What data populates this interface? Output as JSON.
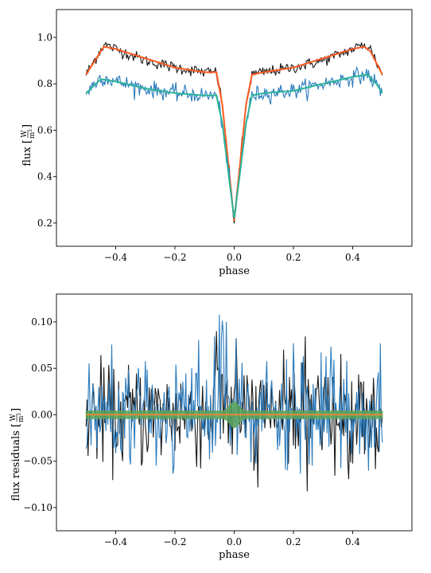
{
  "chart_data": [
    {
      "type": "line",
      "panel": "top",
      "title": "",
      "xlabel": "phase",
      "ylabel": "flux [W/m²]",
      "ylabel_main": "flux [",
      "ylabel_num": "W",
      "ylabel_den": "m²",
      "ylabel_end": "]",
      "xlim": [
        -0.6,
        0.6
      ],
      "ylim": [
        0.1,
        1.12
      ],
      "xticks": [
        -0.4,
        -0.2,
        0.0,
        0.2,
        0.4
      ],
      "xtick_labels": [
        "−0.4",
        "−0.2",
        "0.0",
        "0.2",
        "0.4"
      ],
      "yticks": [
        0.2,
        0.4,
        0.6,
        0.8,
        1.0
      ],
      "ytick_labels": [
        "0.2",
        "0.4",
        "0.6",
        "0.8",
        "1.0"
      ],
      "grid": false,
      "legend": "none",
      "series": [
        {
          "kind": "data",
          "color": "#1a1a1a",
          "x": [
            -0.5,
            -0.44,
            -0.4,
            -0.3,
            -0.2,
            -0.1,
            -0.06,
            -0.04,
            -0.02,
            0.0,
            0.02,
            0.04,
            0.06,
            0.1,
            0.2,
            0.3,
            0.4,
            0.44,
            0.46,
            0.5
          ],
          "y": [
            0.84,
            0.97,
            0.95,
            0.9,
            0.87,
            0.85,
            0.85,
            0.71,
            0.46,
            0.2,
            0.46,
            0.71,
            0.84,
            0.85,
            0.87,
            0.9,
            0.95,
            0.97,
            0.95,
            0.84
          ],
          "noise": 0.025
        },
        {
          "kind": "model",
          "color": "#ff5a1f",
          "x": [
            -0.5,
            -0.44,
            -0.4,
            -0.3,
            -0.2,
            -0.1,
            -0.06,
            -0.04,
            -0.02,
            0.0,
            0.02,
            0.04,
            0.06,
            0.1,
            0.2,
            0.3,
            0.4,
            0.44,
            0.46,
            0.5
          ],
          "y": [
            0.84,
            0.96,
            0.95,
            0.91,
            0.87,
            0.85,
            0.85,
            0.71,
            0.46,
            0.21,
            0.46,
            0.71,
            0.84,
            0.85,
            0.87,
            0.91,
            0.95,
            0.96,
            0.94,
            0.84
          ]
        },
        {
          "kind": "data",
          "color": "#2b7bbd",
          "x": [
            -0.5,
            -0.45,
            -0.4,
            -0.3,
            -0.2,
            -0.1,
            -0.06,
            -0.04,
            -0.02,
            0.0,
            0.02,
            0.04,
            0.06,
            0.1,
            0.2,
            0.3,
            0.4,
            0.45,
            0.48,
            0.5
          ],
          "y": [
            0.76,
            0.83,
            0.81,
            0.78,
            0.76,
            0.75,
            0.75,
            0.63,
            0.42,
            0.21,
            0.42,
            0.63,
            0.75,
            0.76,
            0.77,
            0.8,
            0.83,
            0.84,
            0.8,
            0.76
          ],
          "noise": 0.035
        },
        {
          "kind": "model",
          "color": "#2ab39a",
          "x": [
            -0.5,
            -0.45,
            -0.4,
            -0.3,
            -0.2,
            -0.1,
            -0.06,
            -0.04,
            -0.02,
            0.0,
            0.02,
            0.04,
            0.06,
            0.1,
            0.2,
            0.3,
            0.4,
            0.45,
            0.48,
            0.5
          ],
          "y": [
            0.76,
            0.82,
            0.81,
            0.78,
            0.76,
            0.75,
            0.75,
            0.63,
            0.42,
            0.22,
            0.42,
            0.63,
            0.75,
            0.76,
            0.77,
            0.8,
            0.83,
            0.84,
            0.8,
            0.76
          ]
        }
      ]
    },
    {
      "type": "line",
      "panel": "bottom",
      "title": "",
      "xlabel": "phase",
      "ylabel": "flux residuals [W/m²]",
      "ylabel_main": "flux residuals [",
      "ylabel_num": "W",
      "ylabel_den": "m²",
      "ylabel_end": "]",
      "xlim": [
        -0.6,
        0.6
      ],
      "ylim": [
        -0.125,
        0.13
      ],
      "xticks": [
        -0.4,
        -0.2,
        0.0,
        0.2,
        0.4
      ],
      "xtick_labels": [
        "−0.4",
        "−0.2",
        "0.0",
        "0.2",
        "0.4"
      ],
      "yticks": [
        -0.1,
        -0.05,
        0.0,
        0.05,
        0.1
      ],
      "ytick_labels": [
        "−0.10",
        "−0.05",
        "0.00",
        "0.05",
        "0.10"
      ],
      "grid": false,
      "legend": "none",
      "series": [
        {
          "kind": "residuals",
          "color": "#1a1a1a",
          "amplitude": 0.05,
          "peak": 0.06,
          "peak_at": -0.05
        },
        {
          "kind": "residuals",
          "color": "#2b7bbd",
          "amplitude": 0.055,
          "peak": 0.11,
          "peak_at": -0.04
        },
        {
          "kind": "band",
          "color": "#5aa35a",
          "halfwidth": 0.004,
          "bump": 0.01
        },
        {
          "kind": "model",
          "color": "#e08a3a",
          "x": [
            -0.5,
            0.5
          ],
          "y": [
            0.0,
            0.0
          ]
        }
      ]
    }
  ]
}
